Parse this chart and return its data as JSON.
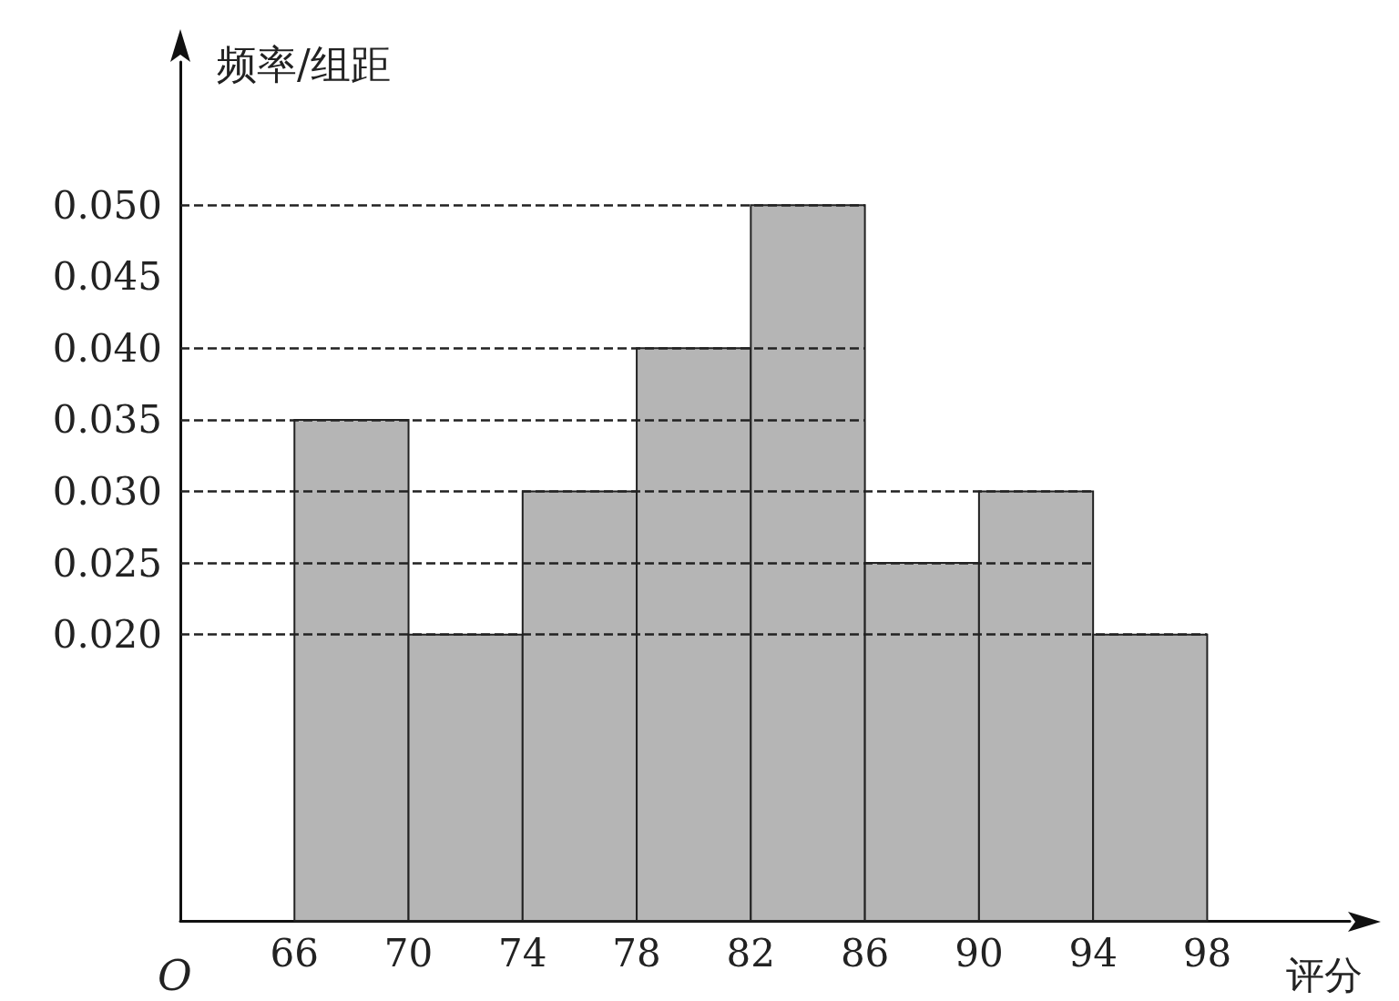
{
  "chart_data": {
    "type": "histogram",
    "bins": [
      66,
      70,
      74,
      78,
      82,
      86,
      90,
      94,
      98
    ],
    "values": [
      0.035,
      0.02,
      0.03,
      0.04,
      0.05,
      0.025,
      0.03,
      0.02
    ],
    "color": "#b5b5b5",
    "xlabel": "评分",
    "ylabel": "频率/组距",
    "xlim": [
      62,
      103
    ],
    "ylim": [
      0,
      0.06
    ],
    "xticks": [
      66,
      70,
      74,
      78,
      82,
      86,
      90,
      94,
      98
    ],
    "yticks": [
      {
        "value": 0.02,
        "label": "0.020"
      },
      {
        "value": 0.025,
        "label": "0.025"
      },
      {
        "value": 0.03,
        "label": "0.030"
      },
      {
        "value": 0.035,
        "label": "0.035"
      },
      {
        "value": 0.04,
        "label": "0.040"
      },
      {
        "value": 0.045,
        "label": "0.045"
      },
      {
        "value": 0.05,
        "label": "0.050"
      }
    ],
    "ref_lines": [
      {
        "axis": "y",
        "value": 0.05,
        "line_style": "dashed"
      },
      {
        "axis": "y",
        "value": 0.04,
        "line_style": "dashed"
      },
      {
        "axis": "y",
        "value": 0.035,
        "line_style": "dashed"
      },
      {
        "axis": "y",
        "value": 0.03,
        "line_style": "dashed"
      },
      {
        "axis": "y",
        "value": 0.025,
        "line_style": "dashed"
      },
      {
        "axis": "y",
        "value": 0.02,
        "line_style": "dashed"
      }
    ],
    "annotations": [
      "O"
    ]
  }
}
